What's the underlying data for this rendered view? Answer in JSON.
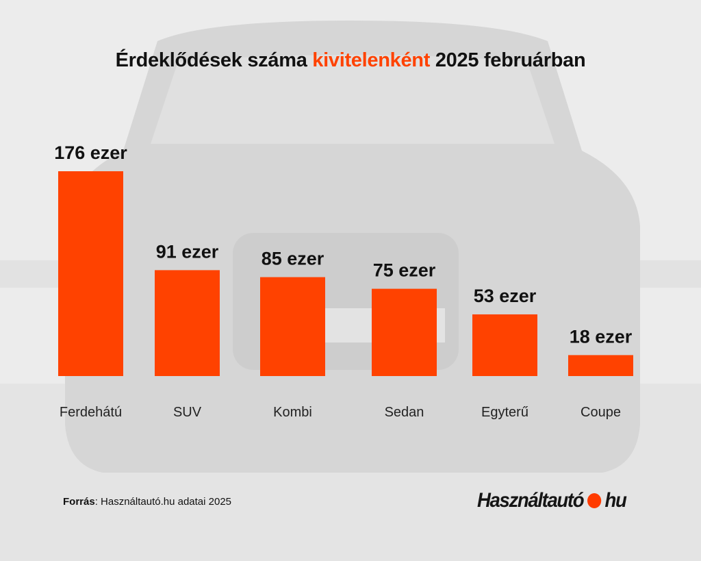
{
  "title": {
    "prefix": "Érdeklődések száma ",
    "highlight": "kivitelenként",
    "suffix": " 2025 februárban"
  },
  "colors": {
    "bar": "#ff4200",
    "highlight": "#ff4200",
    "text": "#111111"
  },
  "chart_data": {
    "type": "bar",
    "title": "Érdeklődések száma kivitelenként 2025 februárban",
    "categories": [
      "Ferdehátú",
      "SUV",
      "Kombi",
      "Sedan",
      "Egyterű",
      "Coupe"
    ],
    "values": [
      176,
      91,
      85,
      75,
      53,
      18
    ],
    "data_labels": [
      "176 ezer",
      "91 ezer",
      "85 ezer",
      "75 ezer",
      "53 ezer",
      "18 ezer"
    ],
    "unit": "ezer",
    "ylim": [
      0,
      176
    ],
    "grid": false,
    "legend": "none"
  },
  "footer": {
    "source_label": "Forrás",
    "source_text": ": Használtautó.hu adatai 2025"
  },
  "logo": {
    "left": "Használtautó",
    "right": "hu"
  }
}
